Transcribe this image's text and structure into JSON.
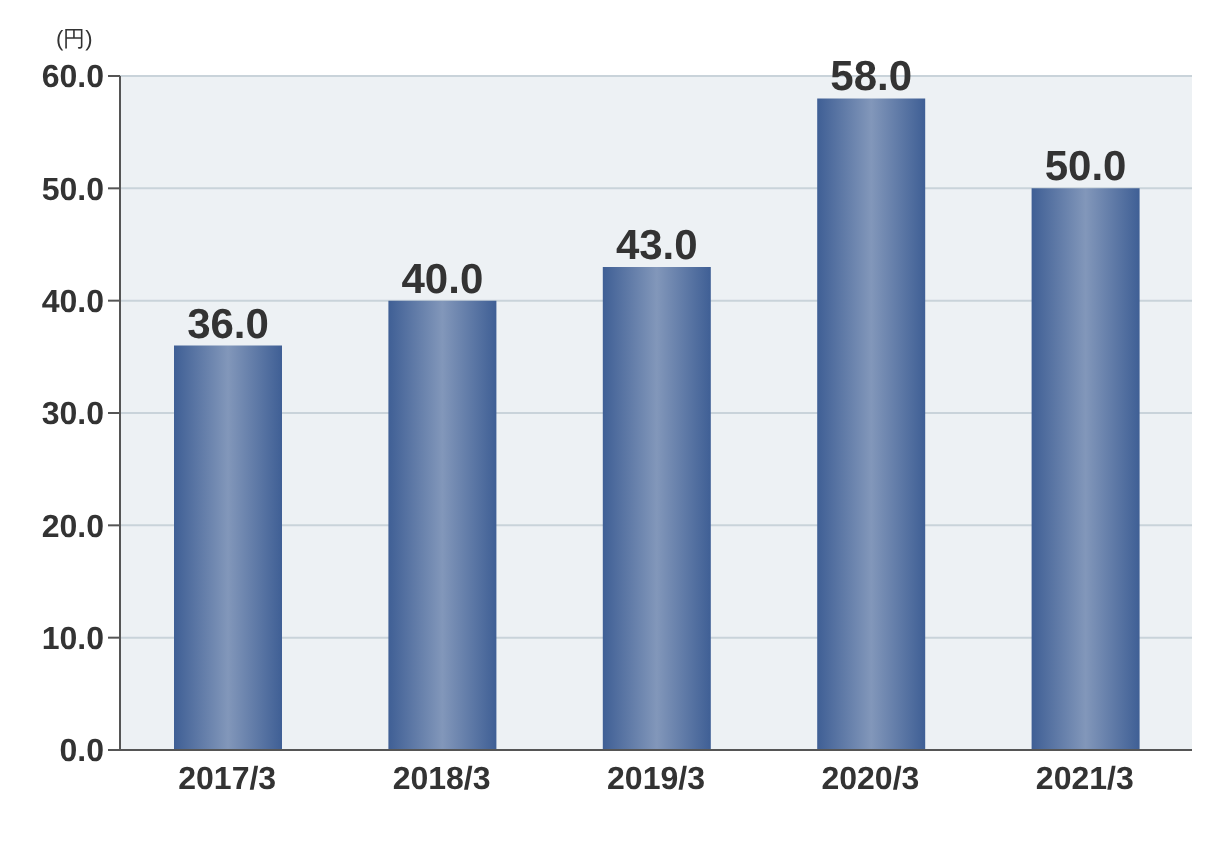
{
  "chart_data": {
    "type": "bar",
    "ylabel": "(円)",
    "categories": [
      "2017/3",
      "2018/3",
      "2019/3",
      "2020/3",
      "2021/3"
    ],
    "values": [
      36.0,
      40.0,
      43.0,
      58.0,
      50.0
    ],
    "value_labels": [
      "36.0",
      "40.0",
      "43.0",
      "58.0",
      "50.0"
    ],
    "color": "#3f5f95",
    "ylim": [
      0,
      60
    ],
    "yticks": [
      {
        "value": 0,
        "label": "0.0"
      },
      {
        "value": 10,
        "label": "10.0"
      },
      {
        "value": 20,
        "label": "20.0"
      },
      {
        "value": 30,
        "label": "30.0"
      },
      {
        "value": 40,
        "label": "40.0"
      },
      {
        "value": 50,
        "label": "50.0"
      },
      {
        "value": 60,
        "label": "60.0"
      }
    ],
    "grid": "y"
  }
}
